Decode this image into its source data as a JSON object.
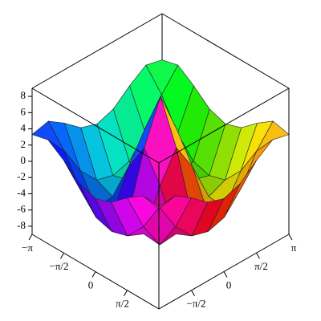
{
  "chart_data": {
    "type": "surface",
    "x": [
      -3.1416,
      -2.3562,
      -1.5708,
      -0.7854,
      0,
      0.7854,
      1.5708,
      2.3562,
      3.1416
    ],
    "y": [
      -3.1416,
      -2.3562,
      -1.5708,
      -0.7854,
      0,
      0.7854,
      1.5708,
      2.3562,
      3.1416
    ],
    "z": [
      [
        3.3,
        3.8,
        2.4,
        0.7,
        0.0,
        0.7,
        2.4,
        3.8,
        3.3
      ],
      [
        3.8,
        1.3,
        -2.3,
        -4.6,
        -5.2,
        -4.6,
        -2.3,
        1.3,
        3.8
      ],
      [
        2.4,
        -2.3,
        -5.7,
        -5.5,
        -4.6,
        -5.5,
        -5.7,
        -2.3,
        2.4
      ],
      [
        0.7,
        -4.6,
        -5.5,
        -0.7,
        2.8,
        -0.7,
        -5.5,
        -4.6,
        0.7
      ],
      [
        0.0,
        -5.2,
        -4.6,
        2.8,
        8.0,
        2.8,
        -4.6,
        -5.2,
        0.0
      ],
      [
        0.7,
        -4.6,
        -5.5,
        -0.7,
        2.8,
        -0.7,
        -5.5,
        -4.6,
        0.7
      ],
      [
        2.4,
        -2.3,
        -5.7,
        -5.5,
        -4.6,
        -5.5,
        -5.7,
        -2.3,
        2.4
      ],
      [
        3.8,
        1.3,
        -2.3,
        -4.6,
        -5.2,
        -4.6,
        -2.3,
        1.3,
        3.8
      ],
      [
        3.3,
        3.8,
        2.4,
        0.7,
        0.0,
        0.7,
        2.4,
        3.8,
        3.3
      ]
    ],
    "xlim": [
      -3.1416,
      3.1416
    ],
    "ylim": [
      -3.1416,
      3.1416
    ],
    "zlim": [
      -9,
      9
    ],
    "xticks": [
      {
        "value": -3.1416,
        "label": "−π"
      },
      {
        "value": -1.5708,
        "label": "−π/2"
      },
      0,
      {
        "value": 1.5708,
        "label": "π/2"
      }
    ],
    "yticks": [
      {
        "value": -1.5708,
        "label": "−π/2"
      },
      0,
      {
        "value": 1.5708,
        "label": "π/2"
      },
      {
        "value": 3.1416,
        "label": "π"
      }
    ],
    "zticks": [
      -8,
      -6,
      -4,
      -2,
      0,
      2,
      4,
      6,
      8
    ]
  }
}
